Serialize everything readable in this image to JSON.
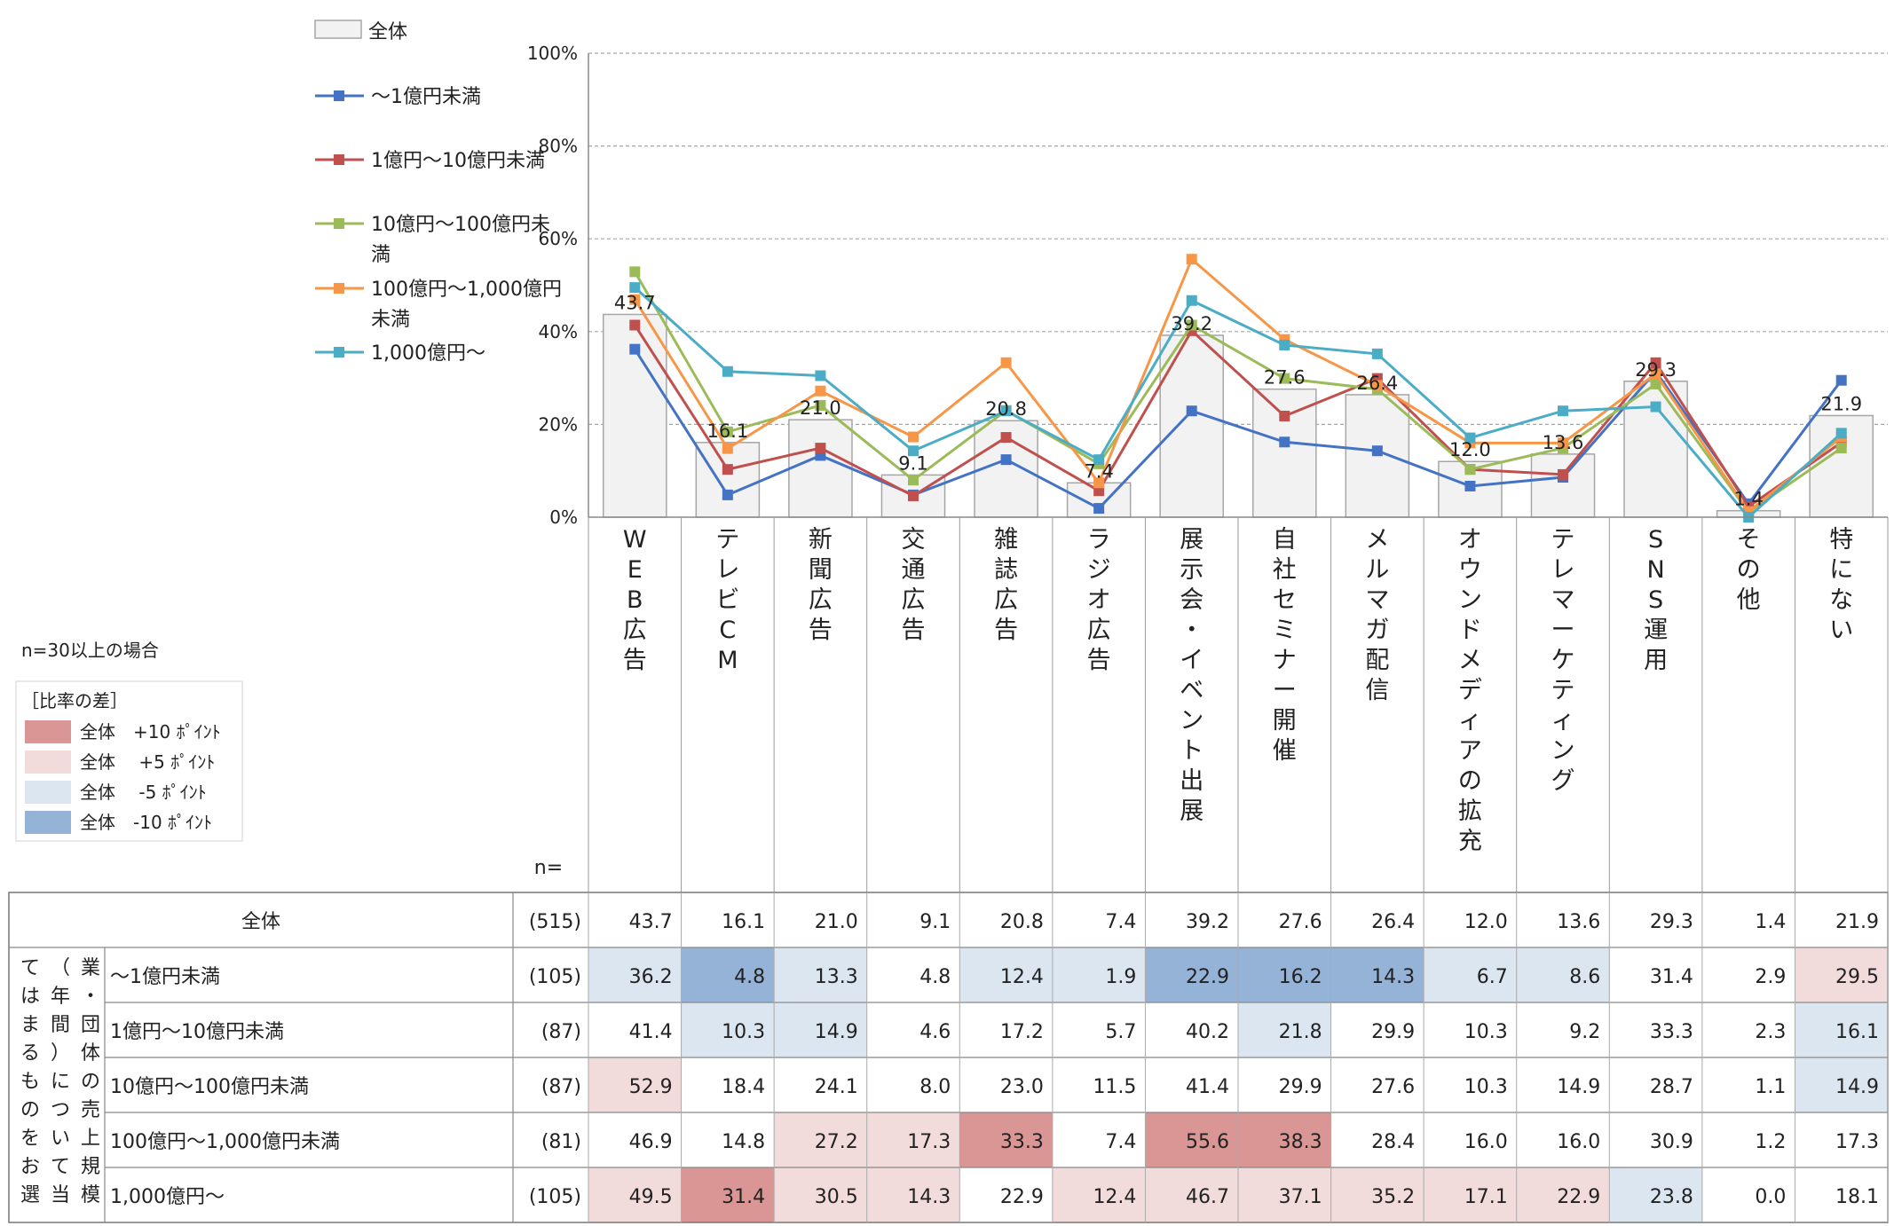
{
  "chart_data": {
    "type": "bar",
    "categories": [
      "WEB広告",
      "テレビCM",
      "新聞広告",
      "交通広告",
      "雑誌広告",
      "ラジオ広告",
      "展示会・イベント出展",
      "自社セミナー開催",
      "メルマガ配信",
      "オウンドメディアの拡充",
      "テレマーケティング",
      "SNS運用",
      "その他",
      "特にない"
    ],
    "ylim": [
      0,
      100
    ],
    "yticks": [
      "0%",
      "20%",
      "40%",
      "60%",
      "80%",
      "100%"
    ],
    "grid": true,
    "bar_series": {
      "name": "全体",
      "values": [
        43.7,
        16.1,
        21.0,
        9.1,
        20.8,
        7.4,
        39.2,
        27.6,
        26.4,
        12.0,
        13.6,
        29.3,
        1.4,
        21.9
      ]
    },
    "series": [
      {
        "name": "～1億円未満",
        "legend": [
          "～1億円未満"
        ],
        "color": "#4472c4",
        "values": [
          36.2,
          4.8,
          13.3,
          4.8,
          12.4,
          1.9,
          22.9,
          16.2,
          14.3,
          6.7,
          8.6,
          31.4,
          2.9,
          29.5
        ]
      },
      {
        "name": "1億円～10億円未満",
        "legend": [
          "1億円～10億円未満"
        ],
        "color": "#c0504d",
        "values": [
          41.4,
          10.3,
          14.9,
          4.6,
          17.2,
          5.7,
          40.2,
          21.8,
          29.9,
          10.3,
          9.2,
          33.3,
          2.3,
          16.1
        ]
      },
      {
        "name": "10億円～100億円未満",
        "legend": [
          "10億円～100億円未",
          "満"
        ],
        "color": "#9bbb59",
        "values": [
          52.9,
          18.4,
          24.1,
          8.0,
          23.0,
          11.5,
          41.4,
          29.9,
          27.6,
          10.3,
          14.9,
          28.7,
          1.1,
          14.9
        ]
      },
      {
        "name": "100億円～1,000億円未満",
        "legend": [
          "100億円～1,000億円",
          "未満"
        ],
        "color": "#f79646",
        "values": [
          46.9,
          14.8,
          27.2,
          17.3,
          33.3,
          7.4,
          55.6,
          38.3,
          28.4,
          16.0,
          16.0,
          30.9,
          1.2,
          17.3
        ]
      },
      {
        "name": "1,000億円～",
        "legend": [
          "1,000億円～"
        ],
        "color": "#4bacc6",
        "values": [
          49.5,
          31.4,
          30.5,
          14.3,
          22.9,
          12.4,
          46.7,
          37.1,
          35.2,
          17.1,
          22.9,
          23.8,
          0.0,
          18.1
        ]
      }
    ],
    "table": {
      "n_label": "n=",
      "total_row": {
        "label": "全体",
        "n": "(515)",
        "values": [
          "43.7",
          "16.1",
          "21.0",
          "9.1",
          "20.8",
          "7.4",
          "39.2",
          "27.6",
          "26.4",
          "12.0",
          "13.6",
          "29.3",
          "1.4",
          "21.9"
        ]
      },
      "group_label": "業団体・売上規模（年間）について当てはまるものをお選び",
      "group_columns": [
        "業・団体の売上規模",
        "（年間）について当",
        "てはまるものをお選"
      ],
      "rows": [
        {
          "label": "～1億円未満",
          "n": "(105)",
          "values": [
            "36.2",
            "4.8",
            "13.3",
            "4.8",
            "12.4",
            "1.9",
            "22.9",
            "16.2",
            "14.3",
            "6.7",
            "8.6",
            "31.4",
            "2.9",
            "29.5"
          ]
        },
        {
          "label": "1億円～10億円未満",
          "n": "(87)",
          "values": [
            "41.4",
            "10.3",
            "14.9",
            "4.6",
            "17.2",
            "5.7",
            "40.2",
            "21.8",
            "29.9",
            "10.3",
            "9.2",
            "33.3",
            "2.3",
            "16.1"
          ]
        },
        {
          "label": "10億円～100億円未満",
          "n": "(87)",
          "values": [
            "52.9",
            "18.4",
            "24.1",
            "8.0",
            "23.0",
            "11.5",
            "41.4",
            "29.9",
            "27.6",
            "10.3",
            "14.9",
            "28.7",
            "1.1",
            "14.9"
          ]
        },
        {
          "label": "100億円～1,000億円未満",
          "n": "(81)",
          "values": [
            "46.9",
            "14.8",
            "27.2",
            "17.3",
            "33.3",
            "7.4",
            "55.6",
            "38.3",
            "28.4",
            "16.0",
            "16.0",
            "30.9",
            "1.2",
            "17.3"
          ]
        },
        {
          "label": "1,000億円～",
          "n": "(105)",
          "values": [
            "49.5",
            "31.4",
            "30.5",
            "14.3",
            "22.9",
            "12.4",
            "46.7",
            "37.1",
            "35.2",
            "17.1",
            "22.9",
            "23.8",
            "0.0",
            "18.1"
          ]
        }
      ]
    },
    "note": "n=30以上の場合",
    "diff_legend": {
      "title": "［比率の差］",
      "items": [
        {
          "label": "全体　+10 ﾎﾟｲﾝﾄ",
          "color": "#da9694",
          "threshold": 10
        },
        {
          "label": "全体　 +5 ﾎﾟｲﾝﾄ",
          "color": "#f2dcdb",
          "threshold": 5
        },
        {
          "label": "全体　 -5 ﾎﾟｲﾝﾄ",
          "color": "#dce6f1",
          "threshold": -5
        },
        {
          "label": "全体　-10 ﾎﾟｲﾝﾄ",
          "color": "#95b3d7",
          "threshold": -10
        }
      ]
    }
  },
  "colors": {
    "bar_fill": "#f2f2f2",
    "bar_stroke": "#a6a6a6",
    "grid": "#a6a6a6"
  }
}
